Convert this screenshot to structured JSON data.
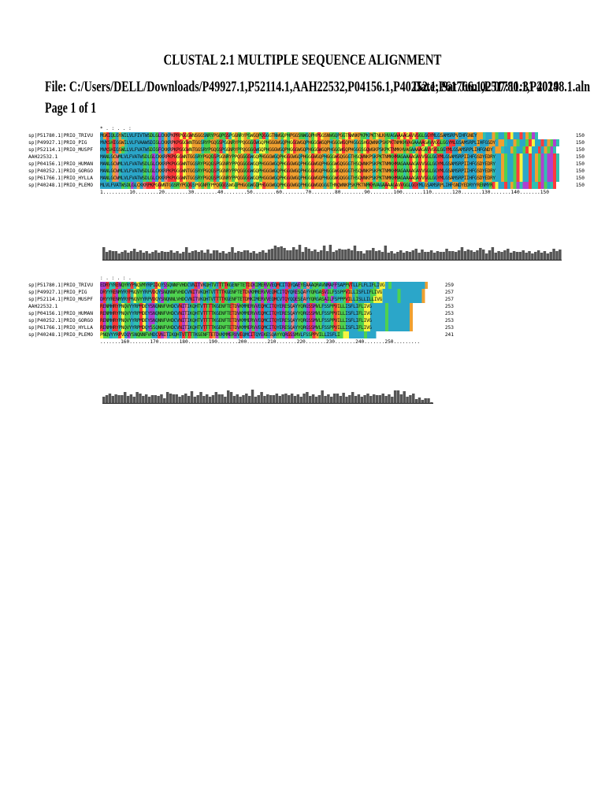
{
  "document": {
    "title": "CLUSTAL 2.1 MULTIPLE SEQUENCE ALIGNMENT",
    "file_line": "File: C:/Users/DELL/Downloads/P49927.1,P52114.1,AAH22532,P04156.1,P40252.1,P61766.1,P51780.1,P40248.1.aln",
    "date_line": "Date: Sat Jun 02 07:11:31 2019",
    "page": "Page 1 of 1"
  },
  "colors": {
    "hydrophobic": "#2ba6c9",
    "polar": "#4fd24f",
    "glycine": "#f0a030",
    "proline": "#f5f542",
    "charged_pos": "#ff3b3b",
    "charged_neg": "#b040d0",
    "aromatic": "#30c0b0",
    "histogram": "#555555"
  },
  "alignment": {
    "block1": {
      "consensus": "*               .         :                                                                                                 . .       :",
      "rows": [
        {
          "name": "sp|P51780.1|PRIO_TRIVU",
          "seq": "MGKIQLGYWILVLFIVTWSDLGLCKKPKPRPGGGWNSGGSNRYPGQPGSPGGNRYPGWGQPQGGGTNWGQPHPGGSNWGQPHPGGSNWGQPGGTNWNKPKPKPKTNLKHVAGAAAAGAVVGGLGGYMLGSAMSRPVIHFGNEY",
          "end": "150"
        },
        {
          "name": "sp|P49927.1|PRIO_PIG",
          "seq": "MVKSHIGGWILVLFVAAWSDIGLCKKRPKPGGGWNTGGSRYPGQGSPGGNRYPPQGGGGWGQPHGGGWGQPHGGGWGQPHGGGWGQPHGGGWGQPHGGGSHGQWNKPSKPKTNMKHVAGAAAAGAVVGGLGGYMLGSAMSRPLIHFGSDY",
          "end": "150"
        },
        {
          "name": "sp|P52114.1|PRIO_MUSPF",
          "seq": "MVKSHIGSWLLVLFVATWSDIGFCKKRPKPGGGWNTGGSRYPGQGSPGGNRYPPQGGGGWGQPHGGGWGQPHGGGWGQPHGGGWGQPHGGGWGQPHGGGSGQWGKPSKPKTNMKHVAGAAAAGAVVGGLGGYMLGSAMSRPLIHFGNDY",
          "end": "150"
        },
        {
          "name": "AAH22532.1",
          "seq": "MANLGCWMLVLFVATWSDLGLCKKRPKPGGGWNTGGSRYPGQGSPGGNRYPPQGGGGWGQPHGGGWGQPHGGGWGQPHGGGWGQPHGGGWGQGGGTHSQWNKPSKPKTNMKHMAGAAAAGAVVGGLGGYMLGSAMSRPIIHFGSDYEDRY",
          "end": "150"
        },
        {
          "name": "sp|P04156.1|PRIO_HUMAN",
          "seq": "MANLGCWMLVLFVATWSDLGLCKKRPKPGGGWNTGGSRYPGQGSPGGNRYPPQGGGGWGQPHGGGWGQPHGGGWGQPHGGGWGQPHGGGWGQGGGTHSQWNKPSKPKTNMKHMAGAAAAGAVVGGLGGYMLGSAMSRPIIHFGSDYEDRY",
          "end": "150"
        },
        {
          "name": "sp|P40252.1|PRIO_GORGO",
          "seq": "MANLGCWMLVLFVATWSDLGLCKKRPKPGGGWNTGGSRYPGQGSPGGNRYPPQGGGGWGQPHGGGWGQPHGGGWGQPHGGGWGQPHGGGWGQGGGTHSQWNKPSKPKTNMKHMAGAAAAGAVVGGLGGYMLGSAMSRPIIHFGSDYEDRY",
          "end": "150"
        },
        {
          "name": "sp|P61766.1|PRIO_HYLLA",
          "seq": "MANLGCWMLVLFVATWSDLGLCKKRPKPGGGWNTGGSRYPGQGSPGGNRYPPQGGGGWGQPHGGGWGQPHGGGWGQPHGGGWGQPHGGGWGQGGGTHSQWNKPSKPKTNMKHMAGAAAAGAVVGGLGGYMLGSAMSRPIIHFGSDYEDRY",
          "end": "150"
        },
        {
          "name": "sp|P40248.1|PRIO_PLEMO",
          "seq": "MLVLFVATWSDLGLCKKRPKPGGWNTGGSRYPGQGSPGGNRYPPQGGGSWGQPHGGGWGQPHGGGWGQPHGGGWGQPHGGGWGQGGGTHNQWNKPSKPKTNMKHVAGAAAAGAVVGGLGGYMLGSAMSRPLIHFGNDYEDRYYRENMYR",
          "end": "150"
        }
      ],
      "ruler": "1.........10........20........30........40........50........60........70........80........90........100.......110.......120.......130.......140.......150"
    },
    "block2": {
      "consensus": "         :               .           :      .       :                  .",
      "rows": [
        {
          "name": "sp|P51780.1|PRIO_TRIVU",
          "seq": "EDRYYRENQYRYPNQVMYRPIDQYSSQNNFVHDCVNITVKQHTVTTTTKGENFTETDIKIMERVVEQMCITQYQAEYEAAAQRAVNMAFFSAPPVTLLFLFLIFLIVG",
          "end": "259"
        },
        {
          "name": "sp|P49927.1|PRIO_PIG",
          "seq": "DRYYRENMYRYPNQVYYRPVDQYSNQNNFVHDCVNITVKQHTVTTTTKGENFTETDVKMMERVVEQMCITQYQRESQAYYQRGASVILFSSPPVILLISFLIFLIVG",
          "end": "257"
        },
        {
          "name": "sp|P52114.1|PRIO_MUSPF",
          "seq": "DRYYRENMYRYPNQVYYRPVDQYSNQNNLVHDCVNITVKQHTVTTTTKGENFTETDMKIMERVVEQMCVTQYQQESEAYYQRGASAILFSPPPVILLISLLILLIVG",
          "end": "257"
        },
        {
          "name": "AAH22532.1",
          "seq": "RENMHRYPNQVYYRPMDEYSNQNNFVHDCVNITIKQHTVTTTTKGENFTETDVKMMERVVEQMCITQYERESQAYYQRGSSMVLFSSPPVILLISFLIFLIVG",
          "end": "253"
        },
        {
          "name": "sp|P04156.1|PRIO_HUMAN",
          "seq": "RENMHRYPNQVYYRPMDEYSNQNNFVHDCVNITIKQHTVTTTTKGENFTETDVKMMERVVEQMCITQYERESQAYYQRGSSMVLFSSPPVILLISFLIFLIVG",
          "end": "253"
        },
        {
          "name": "sp|P40252.1|PRIO_GORGO",
          "seq": "RENMHRYPNQVYYRPMDEYSNQNNFVHDCVNITIKQHTVTTTTKGENFTETDVKMMERVVEQMCITQYERESQAYYQRGSSMVLFSSPPVILLISFLIFLIVG",
          "end": "253"
        },
        {
          "name": "sp|P61766.1|PRIO_HYLLA",
          "seq": "RENMHRYPNQVYYRPMDQYSSQNNFVHDCVNITIKQHTVTTTTKGENFTETDVKMMERVVEQMCITQYERESQAYYQRGSSMVLFSSPPVILLISFLIFLIVG",
          "end": "253"
        },
        {
          "name": "sp|P40248.1|PRIO_PLEMO",
          "seq": "PNQVYYRPVDQYSNQNNFVHDCVNITIKQHTVTTTTKGENFTETDVKMMERVVEQMCITQYEKESQAYYQRGSSMVLFSSPPVILLISFLI",
          "end": "241"
        }
      ],
      "ruler": ".......160.......170.......180.......190.......200.......210.......220.......230.......240.......250........."
    }
  }
}
